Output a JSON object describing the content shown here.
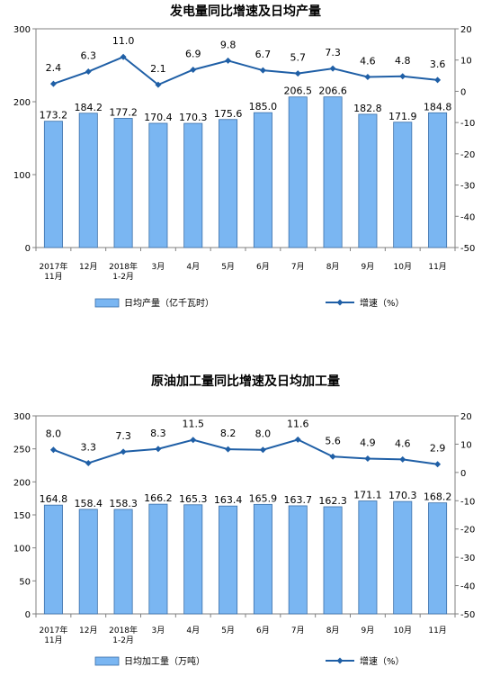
{
  "chart_data": [
    {
      "type": "bar",
      "title": "发电量同比增速及日均产量",
      "categories": [
        [
          "2017年",
          "11月"
        ],
        [
          "12月"
        ],
        [
          "2018年",
          "1-2月"
        ],
        [
          "3月"
        ],
        [
          "4月"
        ],
        [
          "5月"
        ],
        [
          "6月"
        ],
        [
          "7月"
        ],
        [
          "8月"
        ],
        [
          "9月"
        ],
        [
          "10月"
        ],
        [
          "11月"
        ]
      ],
      "ylim": [
        0,
        300
      ],
      "yticks": [
        0,
        100,
        200,
        300
      ],
      "y2lim": [
        -50,
        20
      ],
      "y2ticks": [
        20,
        10,
        0,
        -10,
        -20,
        -30,
        -40,
        -50
      ],
      "legend_position": "bottom",
      "series": [
        {
          "name": "日均产量（亿千瓦时）",
          "kind": "bar",
          "axis": "left",
          "color": "#7ab6f2",
          "values": [
            173.2,
            184.2,
            177.2,
            170.4,
            170.3,
            175.6,
            185.0,
            206.5,
            206.6,
            182.8,
            171.9,
            184.8
          ],
          "labels": [
            "173.2",
            "184.2",
            "177.2",
            "170.4",
            "170.3",
            "175.6",
            "185.0",
            "206.5",
            "206.6",
            "182.8",
            "171.9",
            "184.8"
          ]
        },
        {
          "name": "增速（%）",
          "kind": "line",
          "axis": "right",
          "color": "#1f5fa6",
          "values": [
            2.4,
            6.3,
            11.0,
            2.1,
            6.9,
            9.8,
            6.7,
            5.7,
            7.3,
            4.6,
            4.8,
            3.6
          ],
          "labels": [
            "2.4",
            "6.3",
            "11.0",
            "2.1",
            "6.9",
            "9.8",
            "6.7",
            "5.7",
            "7.3",
            "4.6",
            "4.8",
            "3.6"
          ]
        }
      ]
    },
    {
      "type": "bar",
      "title": "原油加工量同比增速及日均加工量",
      "categories": [
        [
          "2017年",
          "11月"
        ],
        [
          "12月"
        ],
        [
          "2018年",
          "1-2月"
        ],
        [
          "3月"
        ],
        [
          "4月"
        ],
        [
          "5月"
        ],
        [
          "6月"
        ],
        [
          "7月"
        ],
        [
          "8月"
        ],
        [
          "9月"
        ],
        [
          "10月"
        ],
        [
          "11月"
        ]
      ],
      "ylim": [
        0,
        300
      ],
      "yticks": [
        0,
        50,
        100,
        150,
        200,
        250,
        300
      ],
      "y2lim": [
        -50,
        20
      ],
      "y2ticks": [
        20,
        10,
        0,
        -10,
        -20,
        -30,
        -40,
        -50
      ],
      "legend_position": "bottom",
      "series": [
        {
          "name": "日均加工量（万吨）",
          "kind": "bar",
          "axis": "left",
          "color": "#7ab6f2",
          "values": [
            164.8,
            158.4,
            158.3,
            166.2,
            165.3,
            163.4,
            165.9,
            163.7,
            162.3,
            171.1,
            170.3,
            168.2
          ],
          "labels": [
            "164.8",
            "158.4",
            "158.3",
            "166.2",
            "165.3",
            "163.4",
            "165.9",
            "163.7",
            "162.3",
            "171.1",
            "170.3",
            "168.2"
          ]
        },
        {
          "name": "增速（%）",
          "kind": "line",
          "axis": "right",
          "color": "#1f5fa6",
          "values": [
            8.0,
            3.3,
            7.3,
            8.3,
            11.5,
            8.2,
            8.0,
            11.6,
            5.6,
            4.9,
            4.6,
            2.9
          ],
          "labels": [
            "8.0",
            "3.3",
            "7.3",
            "8.3",
            "11.5",
            "8.2",
            "8.0",
            "11.6",
            "5.6",
            "4.9",
            "4.6",
            "2.9"
          ]
        }
      ]
    }
  ]
}
